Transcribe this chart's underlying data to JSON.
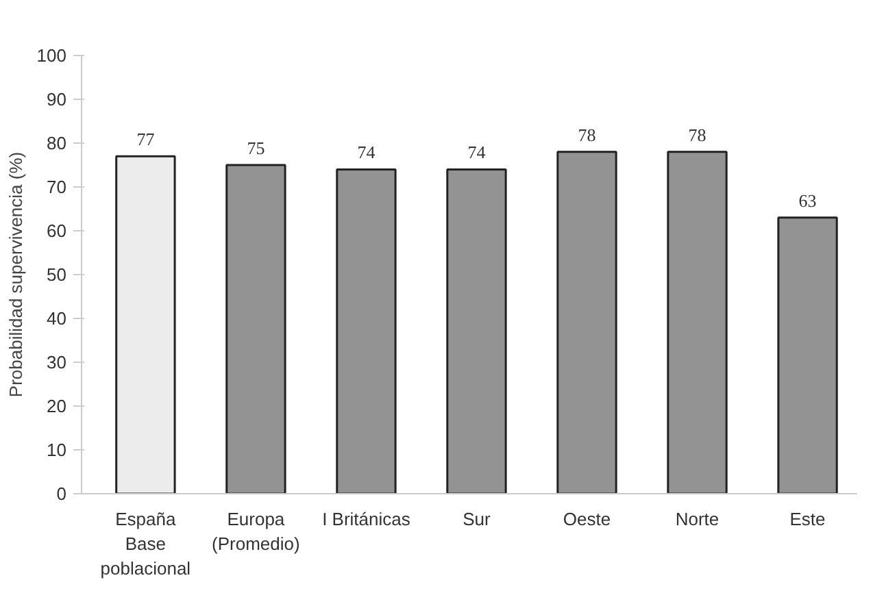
{
  "chart_data": {
    "type": "bar",
    "ylabel": "Probabilidad supervivencia (%)",
    "categories": [
      "España\nBase\npoblacional",
      "Europa\n(Promedio)",
      "I Británicas",
      "Sur",
      "Oeste",
      "Norte",
      "Este"
    ],
    "values": [
      77,
      75,
      74,
      74,
      78,
      78,
      63
    ],
    "colors": [
      "#ececec",
      "#939393",
      "#939393",
      "#939393",
      "#939393",
      "#939393",
      "#939393"
    ],
    "ylim": [
      0,
      100
    ],
    "yticks": [
      0,
      10,
      20,
      30,
      40,
      50,
      60,
      70,
      80,
      90,
      100
    ],
    "grid": false,
    "data_labels": true
  }
}
